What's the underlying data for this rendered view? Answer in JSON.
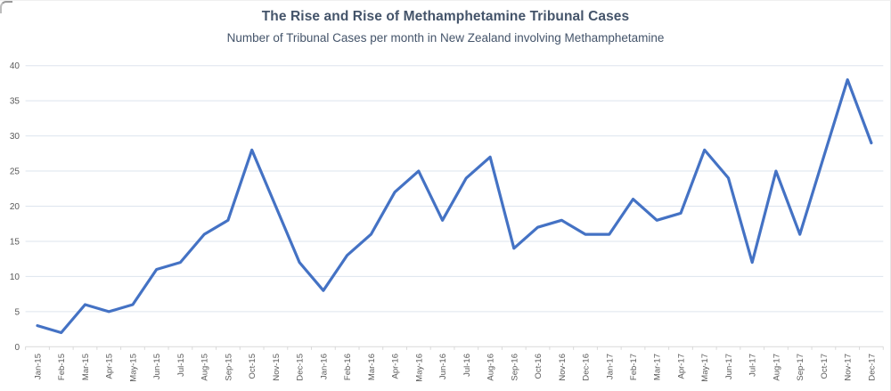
{
  "chart_data": {
    "type": "line",
    "title": "The Rise and Rise of Methamphetamine Tribunal Cases",
    "subtitle": "Number of Tribunal Cases per month in New Zealand involving Methamphetamine",
    "categories": [
      "Jan-15",
      "Feb-15",
      "Mar-15",
      "Apr-15",
      "May-15",
      "Jun-15",
      "Jul-15",
      "Aug-15",
      "Sep-15",
      "Oct-15",
      "Nov-15",
      "Dec-15",
      "Jan-16",
      "Feb-16",
      "Mar-16",
      "Apr-16",
      "May-16",
      "Jun-16",
      "Jul-16",
      "Aug-16",
      "Sep-16",
      "Oct-16",
      "Nov-16",
      "Dec-16",
      "Jan-17",
      "Feb-17",
      "Mar-17",
      "Apr-17",
      "May-17",
      "Jun-17",
      "Jul-17",
      "Aug-17",
      "Sep-17",
      "Oct-17",
      "Nov-17",
      "Dec-17"
    ],
    "values": [
      3,
      2,
      6,
      5,
      6,
      11,
      12,
      16,
      18,
      28,
      20,
      12,
      8,
      13,
      16,
      22,
      25,
      18,
      24,
      27,
      14,
      17,
      18,
      16,
      16,
      21,
      18,
      19,
      28,
      24,
      12,
      25,
      16,
      27,
      38,
      29
    ],
    "xlabel": "",
    "ylabel": "",
    "ylim": [
      0,
      40
    ],
    "ytick_step": 5,
    "grid": "horizontal",
    "legend": "none",
    "colors": {
      "line": "#4472c4",
      "gridline": "#dde4ee",
      "axis_line": "#d9d9d9",
      "tick_mark": "#d9d9d9",
      "title_text": "#44546a",
      "axis_text": "#595959"
    }
  }
}
